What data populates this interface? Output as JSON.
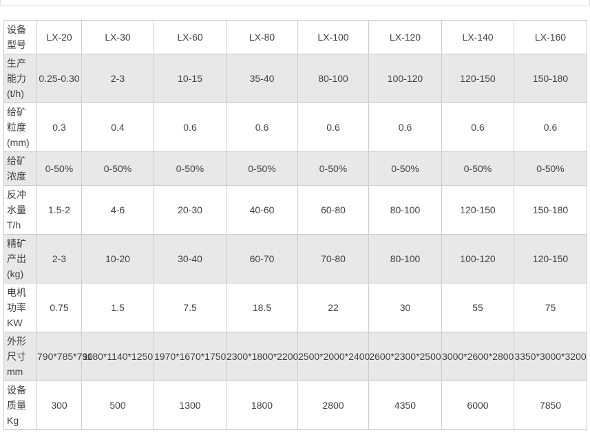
{
  "table": {
    "header": {
      "row_label": "设备\n型号",
      "models": [
        "LX-20",
        "LX-30",
        "LX-60",
        "LX-80",
        "LX-100",
        "LX-120",
        "LX-140",
        "LX-160"
      ]
    },
    "rows": [
      {
        "label": "生产\n能力\n(t/h)",
        "shaded": true,
        "values": [
          "0.25-0.30",
          "2-3",
          "10-15",
          "35-40",
          "80-100",
          "100-120",
          "120-150",
          "150-180"
        ]
      },
      {
        "label": "给矿\n粒度\n(mm)",
        "shaded": false,
        "values": [
          "0.3",
          "0.4",
          "0.6",
          "0.6",
          "0.6",
          "0.6",
          "0.6",
          "0.6"
        ]
      },
      {
        "label": "给矿\n浓度",
        "shaded": true,
        "values": [
          "0-50%",
          "0-50%",
          "0-50%",
          "0-50%",
          "0-50%",
          "0-50%",
          "0-50%",
          "0-50%"
        ]
      },
      {
        "label": "反冲\n水量\nT/h",
        "shaded": false,
        "values": [
          "1.5-2",
          "4-6",
          "20-30",
          "40-60",
          "60-80",
          "80-100",
          "120-150",
          "150-180"
        ]
      },
      {
        "label": "精矿\n产出\n(kg)",
        "shaded": true,
        "values": [
          "2-3",
          "10-20",
          "30-40",
          "60-70",
          "70-80",
          "80-100",
          "100-120",
          "120-150"
        ]
      },
      {
        "label": "电机\n功率\nKW",
        "shaded": false,
        "values": [
          "0.75",
          "1.5",
          "7.5",
          "18.5",
          "22",
          "30",
          "55",
          "75"
        ]
      },
      {
        "label": "外形\n尺寸\nmm",
        "shaded": true,
        "values": [
          "790*785*790",
          "1180*1140*1250",
          "1970*1670*1750",
          "2300*1800*2200",
          "2500*2000*2400",
          "2600*2300*2500",
          "3000*2600*2800",
          "3350*3000*3200"
        ]
      },
      {
        "label": "设备\n质量\nKg",
        "shaded": false,
        "values": [
          "300",
          "500",
          "1300",
          "1800",
          "2800",
          "4350",
          "6000",
          "7850"
        ]
      }
    ],
    "colors": {
      "shaded_row_bg": "#e8e8e8",
      "border": "#cccccc",
      "text": "#404040",
      "top_divider": "#dddddd"
    }
  }
}
